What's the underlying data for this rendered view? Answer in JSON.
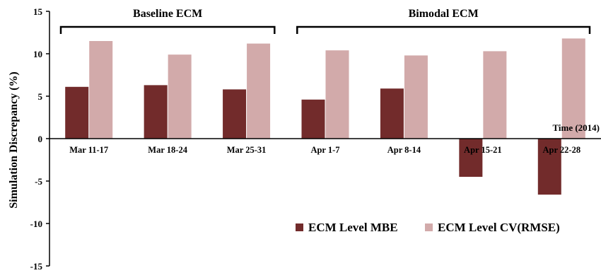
{
  "chart_data": {
    "type": "bar",
    "ylabel": "Simulation Discrepancy (%)",
    "xlabel": "Time (2014)",
    "ylim": [
      -15,
      15
    ],
    "yticks": [
      15,
      10,
      5,
      0,
      -5,
      -10,
      -15
    ],
    "categories": [
      "Mar 11-17",
      "Mar 18-24",
      "Mar 25-31",
      "Apr 1-7",
      "Apr 8-14",
      "Apr 15-21",
      "Apr 22-28"
    ],
    "series": [
      {
        "name": "ECM Level MBE",
        "color": "#722b2b",
        "values": [
          6.1,
          6.3,
          5.8,
          4.6,
          5.9,
          -4.5,
          -6.6
        ]
      },
      {
        "name": "ECM Level CV(RMSE)",
        "color": "#d2aaaa",
        "values": [
          11.5,
          9.9,
          11.2,
          10.4,
          9.8,
          10.3,
          11.8
        ]
      }
    ],
    "groups": [
      {
        "label": "Baseline ECM",
        "from": 0,
        "to": 2
      },
      {
        "label": "Bimodal ECM",
        "from": 3,
        "to": 6
      }
    ],
    "grid": false,
    "legend_position": "bottom-right"
  }
}
